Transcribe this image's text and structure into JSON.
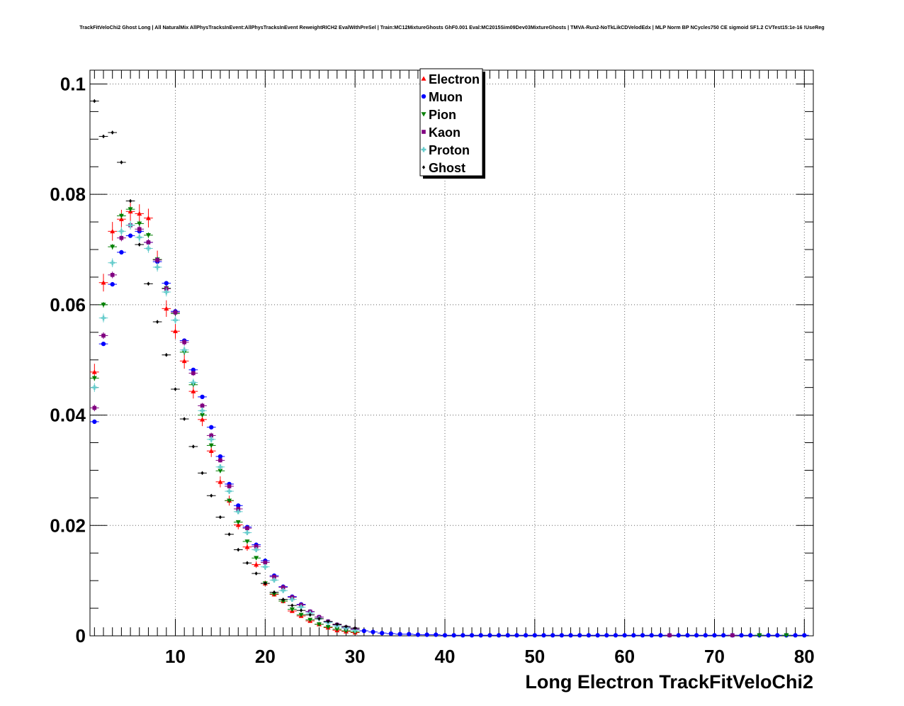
{
  "chart_data": {
    "type": "scatter",
    "title": "TrackFitVeloChi2 Ghost Long | All NaturalMix AllPhysTracksInEvent:AllPhysTracksInEvent ReweightRICH2 EvalWithPreSel | Train:MC12MixtureGhosts GhF0.001 Eval:MC2015Sim09Dev03MixtureGhosts | TMVA-Run2-NoTkLikCDVelodEdx | MLP Norm BP NCycles750 CE sigmoid SF1.2 CVTest15:1e-16 !UseReg",
    "xlabel": "Long Electron TrackFitVeloChi2",
    "ylabel": "",
    "xlim": [
      0.5,
      81
    ],
    "ylim": [
      0,
      0.1025
    ],
    "x_ticks": [
      10,
      20,
      30,
      40,
      50,
      60,
      70,
      80
    ],
    "y_ticks": [
      0,
      0.02,
      0.04,
      0.06,
      0.08,
      0.1
    ],
    "y_tick_labels": [
      "0",
      "0.02",
      "0.04",
      "0.06",
      "0.08",
      "0.1"
    ],
    "grid": true,
    "legend_position": "top-center",
    "series": [
      {
        "name": "Electron",
        "color": "#ff0000",
        "marker": "triangle-up",
        "x": [
          1,
          2,
          3,
          4,
          5,
          6,
          7,
          8,
          9,
          10,
          11,
          12,
          13,
          14,
          15,
          16,
          17,
          18,
          19,
          20,
          21,
          22,
          23,
          24,
          25,
          26,
          27,
          28,
          29,
          30
        ],
        "y": [
          0.0478,
          0.064,
          0.0733,
          0.0755,
          0.0769,
          0.0765,
          0.0757,
          0.0682,
          0.0593,
          0.0552,
          0.0498,
          0.0443,
          0.0392,
          0.0335,
          0.0279,
          0.0245,
          0.0201,
          0.0161,
          0.0129,
          0.0095,
          0.0075,
          0.0063,
          0.0045,
          0.0036,
          0.0027,
          0.0021,
          0.0015,
          0.001,
          0.0008,
          0.0006
        ],
        "err": [
          0.0015,
          0.0016,
          0.0017,
          0.0017,
          0.0017,
          0.0017,
          0.0017,
          0.0016,
          0.0015,
          0.0014,
          0.0014,
          0.0013,
          0.0012,
          0.0011,
          0.001,
          0.0009,
          0.0008,
          0.0007,
          0.0006,
          0.0005,
          0.0004,
          0.0004,
          0.0003,
          0.0003,
          0.0002,
          0.0002,
          0.0002,
          0.0001,
          0.0001,
          0.0001
        ]
      },
      {
        "name": "Muon",
        "color": "#0000ff",
        "marker": "circle",
        "x": [
          1,
          2,
          3,
          4,
          5,
          6,
          7,
          8,
          9,
          10,
          11,
          12,
          13,
          14,
          15,
          16,
          17,
          18,
          19,
          20,
          21,
          22,
          23,
          24,
          25,
          26,
          27,
          28,
          29,
          30,
          31,
          32,
          33,
          34,
          35,
          36,
          37,
          38,
          39,
          40,
          41,
          42,
          43,
          44,
          45,
          46,
          47,
          48,
          49,
          50,
          51,
          52,
          53,
          54,
          55,
          56,
          57,
          58,
          59,
          60,
          61,
          62,
          63,
          64,
          65,
          66,
          67,
          68,
          69,
          70,
          71,
          72,
          73,
          74,
          75,
          76,
          77,
          78,
          79,
          80
        ],
        "y": [
          0.0388,
          0.0529,
          0.0637,
          0.0695,
          0.0725,
          0.0733,
          0.0713,
          0.0678,
          0.0639,
          0.0588,
          0.0535,
          0.0482,
          0.0433,
          0.0378,
          0.0325,
          0.0275,
          0.0236,
          0.0197,
          0.0165,
          0.0136,
          0.0109,
          0.0089,
          0.0071,
          0.0057,
          0.0044,
          0.0034,
          0.0026,
          0.002,
          0.0015,
          0.0012,
          0.0009,
          0.0007,
          0.0005,
          0.0004,
          0.0003,
          0.0003,
          0.0002,
          0.0002,
          0.0002,
          0.0001,
          0.0001,
          0.0001,
          0.0001,
          0.0001,
          0.0001,
          0.0001,
          0.0001,
          0.0001,
          0.0001,
          0.0001,
          0.0001,
          0.0001,
          0.0001,
          0.0001,
          0.0001,
          0.0001,
          0.0001,
          0.0001,
          0.0001,
          0.0001,
          0.0001,
          0.0001,
          0.0001,
          0.0001,
          0.0001,
          0.0001,
          0.0001,
          0.0001,
          0.0001,
          0.0001,
          0.0001,
          0.0001,
          0.0001,
          0.0001,
          0.0001,
          0.0001,
          0.0001,
          0.0001,
          0.0001,
          0.0001
        ],
        "err": [
          0.0003,
          0.0003,
          0.0003,
          0.0003,
          0.0003,
          0.0003,
          0.0003,
          0.0003,
          0.0003,
          0.0003,
          0.0003,
          0.0003,
          0.0002,
          0.0002,
          0.0002,
          0.0002,
          0.0002,
          0.0002,
          0.0002,
          0.0001,
          0.0001,
          0.0001,
          0.0001,
          0.0001,
          0.0001,
          0.0001,
          0.0001,
          0.0001,
          0.0001,
          0.0001,
          0,
          0,
          0,
          0,
          0,
          0,
          0,
          0,
          0,
          0,
          0,
          0,
          0,
          0,
          0,
          0,
          0,
          0,
          0,
          0,
          0,
          0,
          0,
          0,
          0,
          0,
          0,
          0,
          0,
          0,
          0,
          0,
          0,
          0,
          0,
          0,
          0,
          0,
          0,
          0,
          0,
          0,
          0,
          0,
          0,
          0,
          0,
          0,
          0,
          0
        ]
      },
      {
        "name": "Pion",
        "color": "#008000",
        "marker": "triangle-down",
        "x": [
          1,
          2,
          3,
          4,
          5,
          6,
          7,
          8,
          9,
          10,
          11,
          12,
          13,
          14,
          15,
          16,
          17,
          18,
          19,
          20,
          21,
          22,
          23,
          24,
          25,
          26,
          27,
          28,
          29,
          30,
          75,
          78
        ],
        "y": [
          0.0467,
          0.06,
          0.0705,
          0.0761,
          0.0773,
          0.0747,
          0.0726,
          0.0682,
          0.063,
          0.0584,
          0.0514,
          0.0455,
          0.04,
          0.0345,
          0.0299,
          0.0245,
          0.0206,
          0.0171,
          0.0141,
          0.0095,
          0.0076,
          0.0063,
          0.0048,
          0.0038,
          0.0029,
          0.0021,
          0.0016,
          0.0012,
          0.0009,
          0.0007,
          0.0001,
          0.0001
        ],
        "err": [
          0.0005,
          0.0005,
          0.0005,
          0.0005,
          0.0005,
          0.0005,
          0.0005,
          0.0005,
          0.0005,
          0.0005,
          0.0005,
          0.0004,
          0.0004,
          0.0004,
          0.0004,
          0.0003,
          0.0003,
          0.0003,
          0.0003,
          0.0002,
          0.0002,
          0.0002,
          0.0002,
          0.0002,
          0.0001,
          0.0001,
          0.0001,
          0.0001,
          0.0001,
          0.0001,
          0,
          0
        ]
      },
      {
        "name": "Kaon",
        "color": "#800080",
        "marker": "square",
        "x": [
          1,
          2,
          3,
          4,
          5,
          6,
          7,
          8,
          9,
          10,
          11,
          12,
          13,
          14,
          15,
          16,
          17,
          18,
          19,
          20,
          21,
          22,
          23,
          24,
          25,
          26,
          27,
          28,
          29,
          30,
          65,
          72
        ],
        "y": [
          0.0413,
          0.0544,
          0.0654,
          0.0721,
          0.0744,
          0.0737,
          0.0713,
          0.0681,
          0.0629,
          0.0586,
          0.0532,
          0.0476,
          0.0417,
          0.0363,
          0.0318,
          0.0271,
          0.023,
          0.0195,
          0.0162,
          0.0133,
          0.0107,
          0.0088,
          0.007,
          0.0056,
          0.0044,
          0.0034,
          0.0026,
          0.002,
          0.0015,
          0.0012,
          0.0001,
          0.0001
        ],
        "err": [
          0.0006,
          0.0006,
          0.0006,
          0.0006,
          0.0006,
          0.0006,
          0.0006,
          0.0006,
          0.0006,
          0.0006,
          0.0006,
          0.0005,
          0.0005,
          0.0005,
          0.0004,
          0.0004,
          0.0004,
          0.0003,
          0.0003,
          0.0003,
          0.0002,
          0.0002,
          0.0002,
          0.0002,
          0.0001,
          0.0001,
          0.0001,
          0.0001,
          0.0001,
          0.0001,
          0,
          0
        ]
      },
      {
        "name": "Proton",
        "color": "#66cccc",
        "marker": "cross",
        "x": [
          1,
          2,
          3,
          4,
          5,
          6,
          7,
          8,
          9,
          10,
          11,
          12,
          13,
          14,
          15,
          16,
          17,
          18,
          19,
          20,
          21,
          22,
          23,
          24,
          25,
          26,
          27,
          28,
          29,
          30
        ],
        "y": [
          0.045,
          0.0576,
          0.0676,
          0.0733,
          0.0744,
          0.0722,
          0.0702,
          0.0668,
          0.0623,
          0.0572,
          0.0518,
          0.0459,
          0.0408,
          0.0356,
          0.0306,
          0.0262,
          0.0225,
          0.0187,
          0.0156,
          0.0125,
          0.0101,
          0.0082,
          0.0066,
          0.0052,
          0.0041,
          0.0031,
          0.0024,
          0.0018,
          0.0014,
          0.001
        ],
        "err": [
          0.0008,
          0.0008,
          0.0008,
          0.0008,
          0.0008,
          0.0008,
          0.0008,
          0.0008,
          0.0008,
          0.0007,
          0.0007,
          0.0007,
          0.0006,
          0.0006,
          0.0005,
          0.0005,
          0.0004,
          0.0004,
          0.0004,
          0.0003,
          0.0003,
          0.0003,
          0.0002,
          0.0002,
          0.0002,
          0.0002,
          0.0001,
          0.0001,
          0.0001,
          0.0001
        ]
      },
      {
        "name": "Ghost",
        "color": "#000000",
        "marker": "diamond",
        "x": [
          1,
          2,
          3,
          4,
          5,
          6,
          7,
          8,
          9,
          10,
          11,
          12,
          13,
          14,
          15,
          16,
          17,
          18,
          19,
          20,
          21,
          22,
          23,
          24,
          25,
          26,
          27,
          28,
          29,
          30
        ],
        "y": [
          0.0969,
          0.0905,
          0.0912,
          0.0858,
          0.0788,
          0.0709,
          0.0638,
          0.0569,
          0.0509,
          0.0447,
          0.0393,
          0.0343,
          0.0295,
          0.0254,
          0.0215,
          0.0184,
          0.0156,
          0.0132,
          0.0113,
          0.0095,
          0.0079,
          0.0066,
          0.0055,
          0.0046,
          0.0038,
          0.0031,
          0.0026,
          0.0021,
          0.0017,
          0.0014
        ],
        "err": [
          0.0003,
          0.0003,
          0.0003,
          0.0003,
          0.0003,
          0.0003,
          0.0003,
          0.0003,
          0.0003,
          0.0002,
          0.0002,
          0.0002,
          0.0002,
          0.0002,
          0.0002,
          0.0002,
          0.0001,
          0.0001,
          0.0001,
          0.0001,
          0.0001,
          0.0001,
          0.0001,
          0.0001,
          0.0001,
          0.0001,
          0.0001,
          0.0001,
          0.0001,
          0.0001
        ]
      }
    ]
  }
}
